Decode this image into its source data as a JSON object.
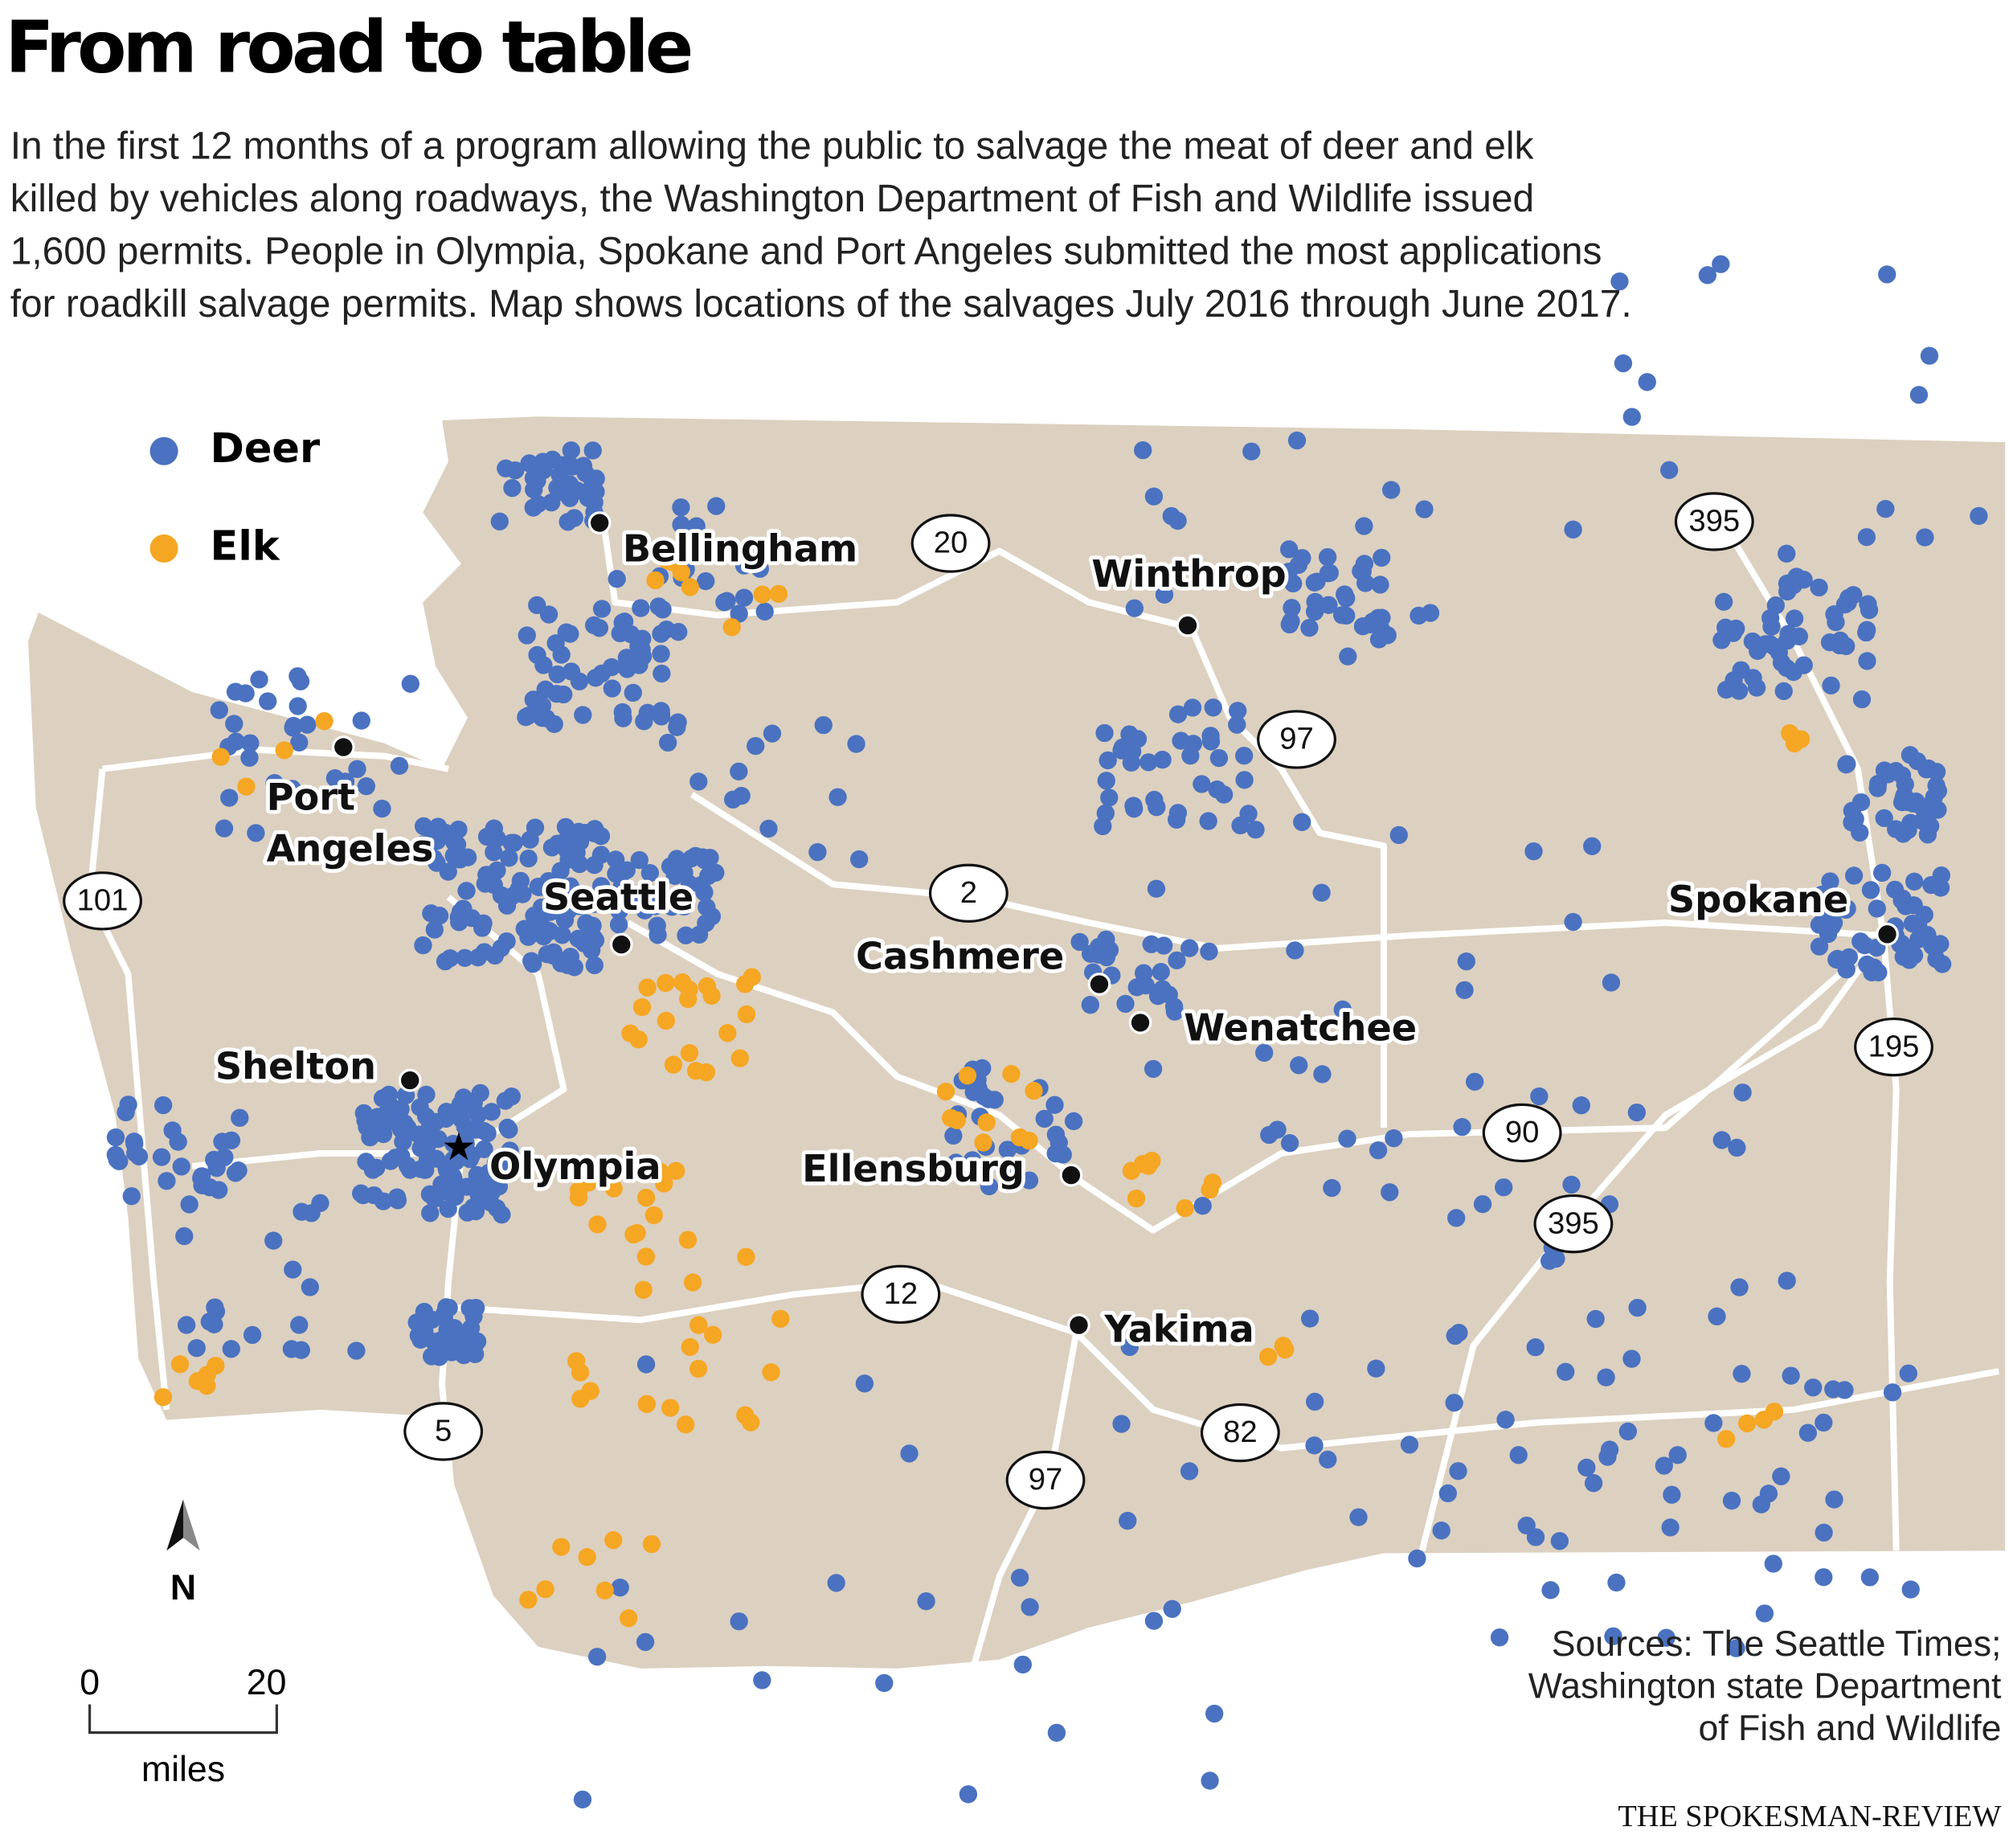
{
  "header": {
    "title": "From road to table",
    "description_lines": [
      "In the first 12 months of a program allowing the public to salvage the meat of deer and elk",
      "killed by vehicles along roadways, the Washington Department of Fish and Wildlife issued",
      "1,600 permits. People in Olympia, Spokane and Port Angeles submitted the most applications",
      "for roadkill salvage permits. Map shows locations of the salvages July 2016 through June 2017."
    ]
  },
  "legend": [
    {
      "label": "Deer",
      "color": "#4a72c0"
    },
    {
      "label": "Elk",
      "color": "#f5a623"
    }
  ],
  "cities": [
    "Bellingham",
    "Winthrop",
    "Port Angeles",
    "Seattle",
    "Cashmere",
    "Spokane",
    "Wenatchee",
    "Shelton",
    "Olympia",
    "Ellensburg",
    "Yakima"
  ],
  "highways": [
    "20",
    "395",
    "97",
    "101",
    "2",
    "195",
    "90",
    "395",
    "12",
    "5",
    "82",
    "97"
  ],
  "compass": "N",
  "scale": {
    "ticks": [
      0,
      20
    ],
    "unit": "miles"
  },
  "sources_lines": [
    "Sources: The Seattle Times;",
    "Washington state Department",
    "of Fish and Wildlife"
  ],
  "credit": "THE SPOKESMAN-REVIEW"
}
